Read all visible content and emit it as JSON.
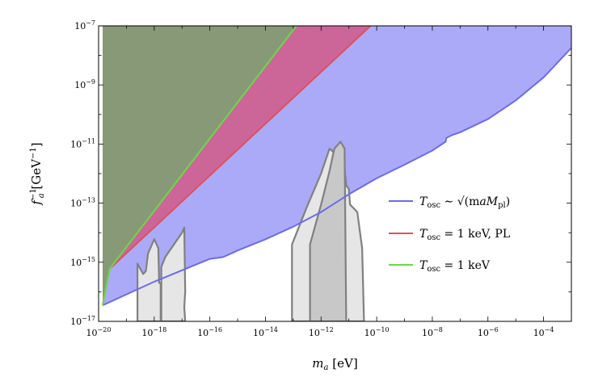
{
  "chart_data": {
    "type": "area",
    "xscale": "log",
    "yscale": "log",
    "xlim": [
      1e-20,
      0.001
    ],
    "ylim": [
      1e-17,
      1e-07
    ],
    "xticks": [
      {
        "value": 1e-20,
        "label": "10",
        "exp": "−20"
      },
      {
        "value": 1e-18,
        "label": "10",
        "exp": "−18"
      },
      {
        "value": 1e-16,
        "label": "10",
        "exp": "−16"
      },
      {
        "value": 1e-14,
        "label": "10",
        "exp": "−14"
      },
      {
        "value": 1e-12,
        "label": "10",
        "exp": "−12"
      },
      {
        "value": 1e-10,
        "label": "10",
        "exp": "−10"
      },
      {
        "value": 1e-08,
        "label": "10",
        "exp": "−8"
      },
      {
        "value": 1e-06,
        "label": "10",
        "exp": "−6"
      },
      {
        "value": 0.0001,
        "label": "10",
        "exp": "−4"
      }
    ],
    "yticks": [
      {
        "value": 1e-17,
        "label": "10",
        "exp": "−17"
      },
      {
        "value": 1e-15,
        "label": "10",
        "exp": "−15"
      },
      {
        "value": 1e-13,
        "label": "10",
        "exp": "−13"
      },
      {
        "value": 1e-11,
        "label": "10",
        "exp": "−11"
      },
      {
        "value": 1e-09,
        "label": "10",
        "exp": "−9"
      },
      {
        "value": 1e-07,
        "label": "10",
        "exp": "−7"
      }
    ],
    "xlabel": {
      "symbol": "m",
      "sub": "a",
      "unit": " [eV]"
    },
    "ylabel": {
      "symbol": "f",
      "sup": "−1",
      "sub": "a",
      "unit": " [GeV",
      "unit_sup": "−1",
      "unit_end": "]"
    },
    "series": [
      {
        "legend": {
          "T": "T",
          "sub": "osc",
          "rest": " ∼ √(m",
          "sub2": "a",
          "rest2": "M",
          "sub3": "pl",
          "rest3": ")"
        },
        "color": "#6b6bf0",
        "fill": "#aaaaf8",
        "upper": [
          [
            1.4e-20,
            1e-07
          ],
          [
            0.001,
            1e-07
          ]
        ],
        "lower": [
          [
            1.4e-20,
            3.5e-17
          ],
          [
            1e-18,
            2.2e-16
          ],
          [
            1e-16,
            1.3e-15
          ],
          [
            3e-16,
            1.5e-15
          ],
          [
            1e-15,
            2.5e-15
          ],
          [
            1e-14,
            6e-15
          ],
          [
            1e-13,
            1.6e-14
          ],
          [
            1e-12,
            5e-14
          ],
          [
            1e-11,
            2e-13
          ],
          [
            1e-10,
            7e-13
          ],
          [
            1e-09,
            2e-12
          ],
          [
            1e-08,
            6e-12
          ],
          [
            3e-08,
            1.2e-11
          ],
          [
            3.2e-08,
            1.6e-11
          ],
          [
            5e-08,
            2e-11
          ],
          [
            1e-07,
            2.5e-11
          ],
          [
            1e-06,
            7e-11
          ],
          [
            1e-05,
            3e-10
          ],
          [
            0.0001,
            1.8e-09
          ],
          [
            0.001,
            1.8e-08
          ]
        ]
      },
      {
        "legend": {
          "T": "T",
          "sub": "osc",
          "rest": " = 1 keV, PL"
        },
        "color": "#e0505a",
        "fill": "#cc6699",
        "upper": [
          [
            1.4e-20,
            1e-07
          ],
          [
            6e-11,
            1e-07
          ]
        ],
        "lower": [
          [
            1.4e-20,
            3.5e-17
          ],
          [
            2.5e-20,
            6e-16
          ],
          [
            6e-11,
            1e-07
          ]
        ]
      },
      {
        "legend": {
          "T": "T",
          "sub": "osc",
          "rest": " = 1 keV"
        },
        "color": "#66dd44",
        "fill": "#889977",
        "upper": [
          [
            1.4e-20,
            1e-07
          ],
          [
            1.3e-13,
            1e-07
          ]
        ],
        "lower": [
          [
            1.4e-20,
            3.5e-17
          ],
          [
            2.5e-20,
            6e-16
          ],
          [
            1.3e-13,
            1e-07
          ]
        ]
      }
    ],
    "constraint_regions": [
      {
        "fill": "#e6e6e6",
        "stroke": "#808080",
        "points": [
          [
            2.5e-19,
            1e-17
          ],
          [
            2.5e-19,
            9e-16
          ],
          [
            4e-19,
            4e-16
          ],
          [
            5e-19,
            5e-16
          ],
          [
            6e-19,
            2e-15
          ],
          [
            1e-18,
            6e-15
          ],
          [
            1.4e-18,
            3e-15
          ],
          [
            1.5e-18,
            2e-16
          ],
          [
            1.7e-18,
            2e-16
          ],
          [
            1.7e-18,
            1e-17
          ]
        ]
      },
      {
        "fill": "#e6e6e6",
        "stroke": "#808080",
        "points": [
          [
            1.8e-18,
            1e-17
          ],
          [
            1.8e-18,
            7e-16
          ],
          [
            2.5e-18,
            1.5e-15
          ],
          [
            6e-18,
            5e-15
          ],
          [
            1e-17,
            1e-14
          ],
          [
            1.2e-17,
            1.5e-14
          ],
          [
            1.3e-17,
            1e-16
          ],
          [
            1.2e-17,
            3e-17
          ],
          [
            1.3e-17,
            1e-17
          ]
        ]
      },
      {
        "fill": "#e6e6e6",
        "stroke": "#808080",
        "points": [
          [
            9e-14,
            1e-17
          ],
          [
            9e-14,
            4e-15
          ],
          [
            3e-13,
            7e-14
          ],
          [
            1e-12,
            1e-12
          ],
          [
            2e-12,
            7e-12
          ],
          [
            4e-12,
            4e-12
          ],
          [
            5e-12,
            2e-12
          ],
          [
            7e-12,
            1.5e-12
          ],
          [
            8e-12,
            4e-13
          ],
          [
            1e-11,
            3e-13
          ],
          [
            1.1e-11,
            9e-14
          ],
          [
            2e-11,
            5e-14
          ],
          [
            3e-11,
            3e-15
          ],
          [
            3.5e-11,
            1e-17
          ]
        ]
      },
      {
        "fill": "#c8c8c8",
        "stroke": "#808080",
        "points": [
          [
            4e-13,
            1e-17
          ],
          [
            4e-13,
            4e-15
          ],
          [
            1e-12,
            9e-14
          ],
          [
            2e-12,
            1.2e-12
          ],
          [
            3e-12,
            7e-12
          ],
          [
            5e-12,
            1.2e-11
          ],
          [
            7e-12,
            7e-12
          ],
          [
            8e-12,
            1e-17
          ]
        ]
      }
    ]
  }
}
